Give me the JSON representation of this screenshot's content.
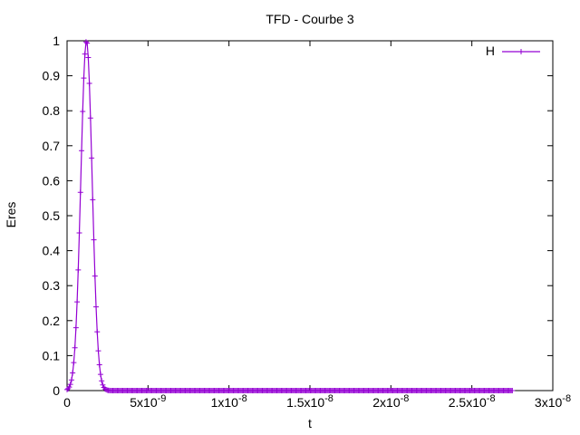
{
  "chart_data": {
    "type": "line",
    "title": "TFD - Courbe 3",
    "xlabel": "t",
    "ylabel": "Eres",
    "xlim": [
      0,
      3e-08
    ],
    "ylim": [
      0,
      1
    ],
    "x_ticks": [
      {
        "value": 0,
        "mantissa": "0",
        "exponent": ""
      },
      {
        "value": 5e-09,
        "mantissa": "5x10",
        "exponent": "-9"
      },
      {
        "value": 1e-08,
        "mantissa": "1x10",
        "exponent": "-8"
      },
      {
        "value": 1.5e-08,
        "mantissa": "1.5x10",
        "exponent": "-8"
      },
      {
        "value": 2e-08,
        "mantissa": "2x10",
        "exponent": "-8"
      },
      {
        "value": 2.5e-08,
        "mantissa": "2.5x10",
        "exponent": "-8"
      },
      {
        "value": 3e-08,
        "mantissa": "3x10",
        "exponent": "-8"
      }
    ],
    "y_ticks": [
      "0",
      "0.1",
      "0.2",
      "0.3",
      "0.4",
      "0.5",
      "0.6",
      "0.7",
      "0.8",
      "0.9",
      "1"
    ],
    "legend_position": "top-right",
    "grid": false,
    "series": [
      {
        "name": "H",
        "color": "#9400d3",
        "marker": "plus",
        "shape": "gaussian pulse",
        "peak_x": 1.2e-09,
        "peak_y": 1.0,
        "sigma": 3.5e-10,
        "x_start": 0,
        "x_end": 2.75e-08,
        "samples": 400
      }
    ]
  }
}
